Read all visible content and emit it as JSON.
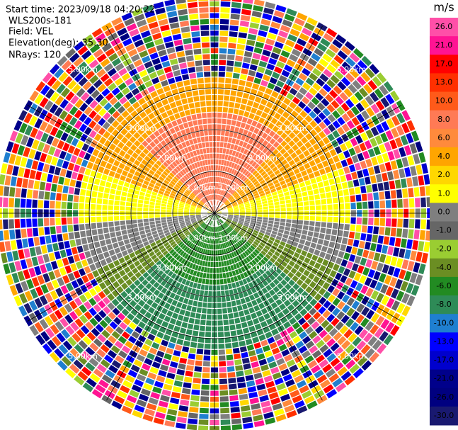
{
  "header": {
    "start_time": "Start time: 2023/09/18 04:20:22",
    "instrument": "WLS200s-181",
    "field": "Field: VEL",
    "elevation": "Elevation(deg): 35.30",
    "nrays": "NRays: 120"
  },
  "range_rings": [
    {
      "value": 1,
      "label": "1.00km"
    },
    {
      "value": 2,
      "label": "2.00km"
    },
    {
      "value": 3,
      "label": "3.00km"
    },
    {
      "value": 5,
      "label": "5.00km"
    }
  ],
  "colorbar": {
    "unit": "m/s",
    "ticks": [
      {
        "value": 26,
        "label": "26.0"
      },
      {
        "value": 21,
        "label": "21.0"
      },
      {
        "value": 17,
        "label": "17.0"
      },
      {
        "value": 13,
        "label": "13.0"
      },
      {
        "value": 10,
        "label": "10.0"
      },
      {
        "value": 8,
        "label": "8.0"
      },
      {
        "value": 6,
        "label": "6.0"
      },
      {
        "value": 4,
        "label": "4.0"
      },
      {
        "value": 2,
        "label": "2.0"
      },
      {
        "value": 1,
        "label": "1.0"
      },
      {
        "value": 0,
        "label": "0.0"
      },
      {
        "value": -1,
        "label": "-1.0"
      },
      {
        "value": -2,
        "label": "-2.0"
      },
      {
        "value": -4,
        "label": "-4.0"
      },
      {
        "value": -6,
        "label": "-6.0"
      },
      {
        "value": -8,
        "label": "-8.0"
      },
      {
        "value": -10,
        "label": "-10.0"
      },
      {
        "value": -13,
        "label": "-13.0"
      },
      {
        "value": -17,
        "label": "-17.0"
      },
      {
        "value": -21,
        "label": "-21.0"
      },
      {
        "value": -26,
        "label": "-26.0"
      },
      {
        "value": -30,
        "label": "-30.0"
      }
    ],
    "colors": [
      "#ff4fa8",
      "#ff1493",
      "#ff0000",
      "#ff3000",
      "#ff5a1a",
      "#ff7a55",
      "#ff8a3c",
      "#ffa500",
      "#ffd700",
      "#ffff00",
      "#7f7f7f",
      "#666666",
      "#9acd32",
      "#6b8e23",
      "#228b22",
      "#2e8b57",
      "#1f7fd0",
      "#0000ff",
      "#0000cd",
      "#00008b",
      "#000080",
      "#191970"
    ]
  }
}
